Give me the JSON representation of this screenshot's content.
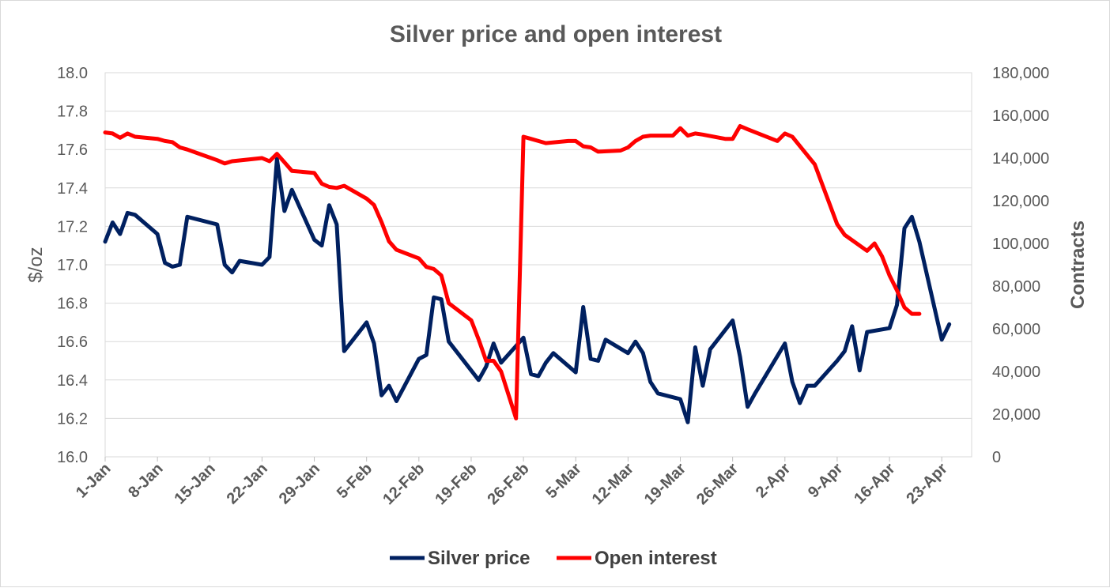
{
  "chart_data": {
    "type": "line",
    "title": "Silver price and open interest",
    "ylabel_left": "$/oz",
    "ylabel_right": "Contracts",
    "ylim_left": [
      16.0,
      18.0
    ],
    "ylim_right": [
      0,
      180000
    ],
    "yticks_left": [
      "16.0",
      "16.2",
      "16.4",
      "16.6",
      "16.8",
      "17.0",
      "17.2",
      "17.4",
      "17.6",
      "17.8",
      "18.0"
    ],
    "yticks_right": [
      "0",
      "20,000",
      "40,000",
      "60,000",
      "80,000",
      "100,000",
      "120,000",
      "140,000",
      "160,000",
      "180,000"
    ],
    "x_axis": {
      "start_day": 1,
      "end_day": 117
    },
    "xticks": [
      {
        "label": "1-Jan",
        "day": 1
      },
      {
        "label": "8-Jan",
        "day": 8
      },
      {
        "label": "15-Jan",
        "day": 15
      },
      {
        "label": "22-Jan",
        "day": 22
      },
      {
        "label": "29-Jan",
        "day": 29
      },
      {
        "label": "5-Feb",
        "day": 36
      },
      {
        "label": "12-Feb",
        "day": 43
      },
      {
        "label": "19-Feb",
        "day": 50
      },
      {
        "label": "26-Feb",
        "day": 57
      },
      {
        "label": "5-Mar",
        "day": 64
      },
      {
        "label": "12-Mar",
        "day": 71
      },
      {
        "label": "19-Mar",
        "day": 78
      },
      {
        "label": "26-Mar",
        "day": 85
      },
      {
        "label": "2-Apr",
        "day": 92
      },
      {
        "label": "9-Apr",
        "day": 99
      },
      {
        "label": "16-Apr",
        "day": 106
      },
      {
        "label": "23-Apr",
        "day": 113
      }
    ],
    "grid": true,
    "legend_position": "bottom",
    "series": [
      {
        "name": "Silver price",
        "axis": "left",
        "color": "#002060",
        "points": [
          [
            1,
            17.12
          ],
          [
            2,
            17.22
          ],
          [
            3,
            17.16
          ],
          [
            4,
            17.27
          ],
          [
            5,
            17.26
          ],
          [
            8,
            17.16
          ],
          [
            9,
            17.01
          ],
          [
            10,
            16.99
          ],
          [
            11,
            17.0
          ],
          [
            12,
            17.25
          ],
          [
            16,
            17.21
          ],
          [
            17,
            17.0
          ],
          [
            18,
            16.96
          ],
          [
            19,
            17.02
          ],
          [
            22,
            17.0
          ],
          [
            23,
            17.04
          ],
          [
            24,
            17.55
          ],
          [
            25,
            17.28
          ],
          [
            26,
            17.39
          ],
          [
            29,
            17.13
          ],
          [
            30,
            17.1
          ],
          [
            31,
            17.31
          ],
          [
            32,
            17.21
          ],
          [
            33,
            16.55
          ],
          [
            36,
            16.7
          ],
          [
            37,
            16.59
          ],
          [
            38,
            16.32
          ],
          [
            39,
            16.37
          ],
          [
            40,
            16.29
          ],
          [
            43,
            16.51
          ],
          [
            44,
            16.53
          ],
          [
            45,
            16.83
          ],
          [
            46,
            16.82
          ],
          [
            47,
            16.6
          ],
          [
            51,
            16.4
          ],
          [
            52,
            16.47
          ],
          [
            53,
            16.59
          ],
          [
            54,
            16.49
          ],
          [
            57,
            16.62
          ],
          [
            58,
            16.43
          ],
          [
            59,
            16.42
          ],
          [
            60,
            16.49
          ],
          [
            61,
            16.54
          ],
          [
            64,
            16.44
          ],
          [
            65,
            16.78
          ],
          [
            66,
            16.51
          ],
          [
            67,
            16.5
          ],
          [
            68,
            16.61
          ],
          [
            71,
            16.54
          ],
          [
            72,
            16.6
          ],
          [
            73,
            16.54
          ],
          [
            74,
            16.39
          ],
          [
            75,
            16.33
          ],
          [
            78,
            16.3
          ],
          [
            79,
            16.18
          ],
          [
            80,
            16.57
          ],
          [
            81,
            16.37
          ],
          [
            82,
            16.56
          ],
          [
            85,
            16.71
          ],
          [
            86,
            16.52
          ],
          [
            87,
            16.26
          ],
          [
            88,
            16.33
          ],
          [
            92,
            16.59
          ],
          [
            93,
            16.39
          ],
          [
            94,
            16.28
          ],
          [
            95,
            16.37
          ],
          [
            96,
            16.37
          ],
          [
            99,
            16.5
          ],
          [
            100,
            16.55
          ],
          [
            101,
            16.68
          ],
          [
            102,
            16.45
          ],
          [
            103,
            16.65
          ],
          [
            106,
            16.67
          ],
          [
            107,
            16.79
          ],
          [
            108,
            17.19
          ],
          [
            109,
            17.25
          ],
          [
            110,
            17.12
          ],
          [
            113,
            16.61
          ],
          [
            114,
            16.69
          ]
        ]
      },
      {
        "name": "Open interest",
        "axis": "right",
        "color": "#ff0000",
        "points": [
          [
            1,
            152000
          ],
          [
            2,
            151500
          ],
          [
            3,
            149500
          ],
          [
            4,
            151500
          ],
          [
            5,
            150000
          ],
          [
            8,
            149000
          ],
          [
            9,
            148000
          ],
          [
            10,
            147500
          ],
          [
            11,
            145000
          ],
          [
            12,
            144000
          ],
          [
            16,
            139000
          ],
          [
            17,
            137500
          ],
          [
            18,
            138500
          ],
          [
            22,
            140000
          ],
          [
            23,
            138500
          ],
          [
            24,
            142000
          ],
          [
            25,
            138000
          ],
          [
            26,
            134000
          ],
          [
            29,
            133000
          ],
          [
            30,
            128000
          ],
          [
            31,
            126500
          ],
          [
            32,
            126000
          ],
          [
            33,
            127000
          ],
          [
            36,
            121000
          ],
          [
            37,
            118000
          ],
          [
            38,
            110000
          ],
          [
            39,
            101000
          ],
          [
            40,
            97000
          ],
          [
            43,
            93000
          ],
          [
            44,
            89000
          ],
          [
            45,
            88000
          ],
          [
            46,
            85000
          ],
          [
            47,
            72000
          ],
          [
            50,
            64000
          ],
          [
            51,
            55000
          ],
          [
            52,
            45000
          ],
          [
            53,
            45000
          ],
          [
            54,
            40000
          ],
          [
            56,
            18000
          ],
          [
            57,
            150000
          ],
          [
            58,
            149000
          ],
          [
            59,
            148000
          ],
          [
            60,
            147000
          ],
          [
            63,
            148000
          ],
          [
            64,
            148000
          ],
          [
            65,
            145500
          ],
          [
            66,
            145000
          ],
          [
            67,
            143000
          ],
          [
            70,
            143500
          ],
          [
            71,
            145000
          ],
          [
            72,
            148000
          ],
          [
            73,
            150000
          ],
          [
            74,
            150500
          ],
          [
            77,
            150500
          ],
          [
            78,
            154000
          ],
          [
            79,
            150500
          ],
          [
            80,
            151500
          ],
          [
            81,
            151000
          ],
          [
            84,
            149000
          ],
          [
            85,
            149000
          ],
          [
            86,
            155000
          ],
          [
            87,
            153500
          ],
          [
            91,
            148000
          ],
          [
            92,
            151500
          ],
          [
            93,
            150000
          ],
          [
            96,
            137000
          ],
          [
            99,
            109000
          ],
          [
            100,
            104000
          ],
          [
            103,
            96500
          ],
          [
            104,
            100000
          ],
          [
            105,
            94000
          ],
          [
            106,
            85000
          ],
          [
            107,
            78000
          ],
          [
            108,
            70000
          ],
          [
            109,
            67000
          ],
          [
            110,
            67000
          ]
        ]
      }
    ]
  }
}
